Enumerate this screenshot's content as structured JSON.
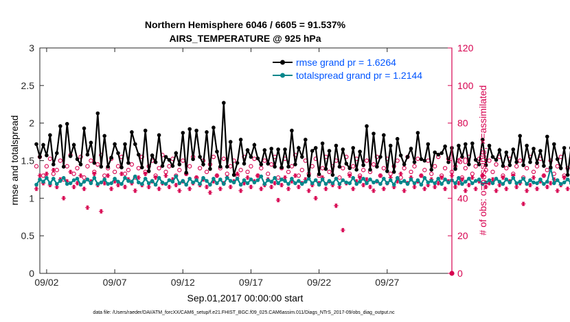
{
  "chart_data": {
    "type": "line",
    "title": "Northern Hemisphere 6046 / 6605 = 91.537%",
    "subtitle": "AIRS_TEMPERATURE @ 925 hPa",
    "xlabel": "Sep.01,2017 00:00:00 start",
    "ylabel_left": "rmse and totalspread",
    "ylabel_right": "# of obs: o=possible; ×=assimilated",
    "ylim_left": [
      0,
      3
    ],
    "ylim_right": [
      0,
      120
    ],
    "xlim_days": [
      0.5,
      30.75
    ],
    "left_ticks": [
      "0",
      "0.5",
      "1",
      "1.5",
      "2",
      "2.5",
      "3"
    ],
    "right_ticks": [
      "0",
      "20",
      "40",
      "60",
      "80",
      "100",
      "120"
    ],
    "x_ticks": [
      {
        "day": 1,
        "label": "09/02"
      },
      {
        "day": 6,
        "label": "09/07"
      },
      {
        "day": 11,
        "label": "09/12"
      },
      {
        "day": 16,
        "label": "09/17"
      },
      {
        "day": 21,
        "label": "09/22"
      },
      {
        "day": 26,
        "label": "09/27"
      }
    ],
    "grid": false,
    "legend_position": "top-right",
    "footnote": "data file: /Users/raeder/DAI/ATM_forcXX/CAM6_setup/f.e21.FHIST_BGC.f09_025.CAM6assim.011/Diags_NTrS_2017-09/obs_diag_output.nc",
    "series": [
      {
        "name": "rmse grand pr = 1.6264",
        "axis": "left",
        "color": "#000000",
        "marker": "circle",
        "values": [
          1.72,
          1.55,
          1.71,
          1.57,
          1.84,
          1.45,
          1.6,
          1.96,
          1.42,
          1.99,
          1.56,
          1.71,
          1.52,
          1.45,
          1.93,
          1.58,
          1.74,
          1.47,
          2.13,
          1.42,
          1.83,
          1.42,
          1.54,
          1.72,
          1.6,
          1.41,
          1.72,
          1.47,
          1.88,
          1.72,
          1.58,
          1.41,
          1.9,
          1.36,
          1.57,
          1.48,
          1.84,
          1.43,
          1.55,
          1.51,
          1.43,
          1.6,
          1.45,
          1.87,
          1.34,
          1.92,
          1.52,
          1.9,
          1.55,
          1.45,
          1.88,
          1.39,
          1.94,
          1.62,
          1.42,
          2.27,
          1.42,
          1.75,
          1.31,
          1.47,
          1.78,
          1.46,
          1.64,
          1.55,
          1.71,
          1.53,
          1.45,
          1.64,
          1.46,
          1.66,
          1.42,
          1.65,
          1.41,
          1.65,
          1.42,
          1.9,
          1.45,
          1.67,
          1.55,
          1.78,
          1.3,
          1.63,
          1.67,
          1.32,
          1.73,
          1.39,
          1.63,
          1.31,
          1.7,
          1.42,
          1.65,
          1.46,
          1.4,
          1.67,
          1.38,
          1.62,
          1.44,
          1.96,
          1.38,
          1.86,
          1.42,
          1.55,
          1.84,
          1.36,
          1.7,
          1.35,
          1.79,
          1.57,
          1.45,
          1.55,
          1.66,
          1.48,
          1.87,
          1.52,
          1.5,
          1.72,
          1.38,
          1.61,
          1.58,
          1.6,
          1.69,
          1.48,
          1.67,
          1.39,
          1.7,
          1.55,
          1.72,
          1.45,
          1.73,
          1.51,
          1.45,
          1.78,
          1.44,
          1.7,
          1.55,
          1.51,
          1.64,
          1.43,
          1.61,
          1.44,
          1.65,
          1.48,
          1.83,
          1.44,
          1.7,
          1.48,
          1.66,
          1.47,
          1.63,
          1.43,
          1.82,
          1.41,
          1.72,
          1.52,
          1.4,
          1.67,
          1.31,
          1.67,
          1.49,
          1.55,
          1.65,
          1.4,
          1.63,
          1.46,
          1.72,
          1.39,
          1.64,
          1.4,
          1.73,
          1.51,
          1.45,
          1.8,
          1.4,
          1.64,
          1.5,
          1.6,
          1.54
        ]
      },
      {
        "name": "totalspread grand pr = 1.2144",
        "axis": "left",
        "color": "#00868b",
        "marker": "circle",
        "values": [
          1.18,
          1.25,
          1.22,
          1.27,
          1.2,
          1.26,
          1.19,
          1.23,
          1.27,
          1.19,
          1.2,
          1.24,
          1.26,
          1.18,
          1.22,
          1.25,
          1.2,
          1.27,
          1.19,
          1.21,
          1.25,
          1.19,
          1.2,
          1.26,
          1.22,
          1.19,
          1.27,
          1.23,
          1.22,
          1.29,
          1.21,
          1.19,
          1.26,
          1.2,
          1.23,
          1.18,
          1.27,
          1.21,
          1.19,
          1.24,
          1.22,
          1.29,
          1.2,
          1.23,
          1.18,
          1.26,
          1.21,
          1.24,
          1.19,
          1.27,
          1.23,
          1.18,
          1.26,
          1.2,
          1.25,
          1.19,
          1.27,
          1.23,
          1.21,
          1.26,
          1.18,
          1.24,
          1.2,
          1.25,
          1.21,
          1.24,
          1.29,
          1.19,
          1.24,
          1.22,
          1.27,
          1.2,
          1.25,
          1.23,
          1.19,
          1.26,
          1.2,
          1.23,
          1.19,
          1.22,
          1.26,
          1.2,
          1.24,
          1.18,
          1.25,
          1.19,
          1.23,
          1.2,
          1.26,
          1.19,
          1.24,
          1.21,
          1.2,
          1.27,
          1.19,
          1.22,
          1.26,
          1.2,
          1.25,
          1.21,
          1.23,
          1.19,
          1.26,
          1.2,
          1.24,
          1.18,
          1.27,
          1.21,
          1.23,
          1.19,
          1.25,
          1.2,
          1.24,
          1.18,
          1.27,
          1.21,
          1.23,
          1.2,
          1.26,
          1.19,
          1.25,
          1.21,
          1.24,
          1.2,
          1.27,
          1.19,
          1.22,
          1.26,
          1.2,
          1.23,
          1.25,
          1.19,
          1.21,
          1.24,
          1.2,
          1.26,
          1.22,
          1.19,
          1.25,
          1.21,
          1.27,
          1.2,
          1.22,
          1.26,
          1.19,
          1.24,
          1.21,
          1.2,
          1.25,
          1.19,
          1.22,
          1.4,
          1.2,
          1.24,
          1.19,
          1.21,
          1.25,
          1.2,
          1.23,
          1.19,
          1.22,
          1.26,
          1.18,
          1.23,
          1.2,
          1.25,
          1.19,
          1.21,
          1.24,
          1.18,
          1.22,
          1.17,
          1.2,
          1.15,
          1.11
        ]
      },
      {
        "name": "possible",
        "axis": "right",
        "color": "#d7004f",
        "marker": "open-circle",
        "values": [
          57,
          62,
          52,
          57,
          61,
          53,
          55,
          60,
          50,
          57,
          63,
          53,
          56,
          62,
          51,
          57,
          60,
          54,
          58,
          63,
          52,
          56,
          61,
          54,
          57,
          62,
          53,
          55,
          58,
          51,
          56,
          62,
          54,
          57,
          60,
          52,
          56,
          63,
          54,
          57,
          61,
          52,
          55,
          60,
          53,
          57,
          62,
          51,
          56,
          60,
          54,
          58,
          62,
          52,
          56,
          61,
          53,
          57,
          60,
          52,
          55,
          62,
          54,
          57,
          61,
          52,
          56,
          60,
          53,
          58,
          62,
          51,
          56,
          61,
          54,
          57,
          63,
          52,
          55,
          60,
          53,
          57,
          61,
          52,
          56,
          62,
          54,
          57,
          60,
          51,
          56,
          62,
          53,
          57,
          61,
          52,
          55,
          60,
          54,
          58,
          62,
          52,
          56,
          61,
          53,
          57,
          60,
          51,
          56,
          62,
          54,
          57,
          61,
          52,
          55,
          60,
          53,
          57,
          62,
          52,
          56,
          61,
          54,
          57,
          60,
          51,
          56,
          62,
          53,
          57,
          61,
          52,
          55,
          60,
          54,
          58,
          62,
          52,
          56,
          61,
          53,
          57,
          60,
          51,
          56,
          62,
          54,
          57,
          61,
          52,
          55,
          60,
          53,
          57,
          62,
          52,
          56,
          61,
          54,
          57,
          60,
          51,
          56,
          60,
          53,
          56,
          59,
          52,
          55,
          58,
          53,
          56,
          58,
          52,
          55,
          57,
          52,
          51,
          49,
          48
        ]
      },
      {
        "name": "assimilated",
        "axis": "right",
        "color": "#d7004f",
        "marker": "asterisk",
        "values": [
          45,
          52,
          48,
          53,
          47,
          55,
          46,
          50,
          40,
          49,
          54,
          46,
          48,
          52,
          45,
          35,
          49,
          53,
          47,
          33,
          48,
          52,
          45,
          49,
          47,
          53,
          46,
          50,
          48,
          44,
          51,
          47,
          53,
          46,
          49,
          51,
          45,
          48,
          52,
          46,
          50,
          47,
          44,
          49,
          53,
          45,
          48,
          51,
          47,
          50,
          46,
          43,
          49,
          52,
          45,
          48,
          51,
          46,
          49,
          53,
          44,
          48,
          51,
          46,
          49,
          52,
          45,
          47,
          50,
          46,
          48,
          39,
          47,
          51,
          45,
          49,
          52,
          46,
          48,
          50,
          44,
          47,
          40,
          48,
          51,
          45,
          49,
          47,
          36,
          46,
          23,
          48,
          52,
          45,
          49,
          51,
          47,
          50,
          46,
          44,
          49,
          52,
          45,
          48,
          51,
          46,
          49,
          53,
          44,
          48,
          51,
          46,
          49,
          52,
          45,
          47,
          50,
          46,
          48,
          51,
          45,
          49,
          52,
          46,
          48,
          50,
          44,
          47,
          51,
          45,
          49,
          52,
          46,
          48,
          50,
          44,
          47,
          51,
          45,
          49,
          52,
          46,
          48,
          37,
          44,
          47,
          51,
          45,
          49,
          52,
          46,
          48,
          50,
          44,
          47,
          51,
          45,
          49,
          52,
          46,
          48,
          50,
          44,
          47,
          51,
          45,
          49,
          46,
          41,
          44,
          47,
          45,
          42,
          46,
          44,
          43,
          40,
          41,
          39,
          44
        ]
      }
    ],
    "end_marker": {
      "day": 30.75,
      "value": 0
    }
  }
}
